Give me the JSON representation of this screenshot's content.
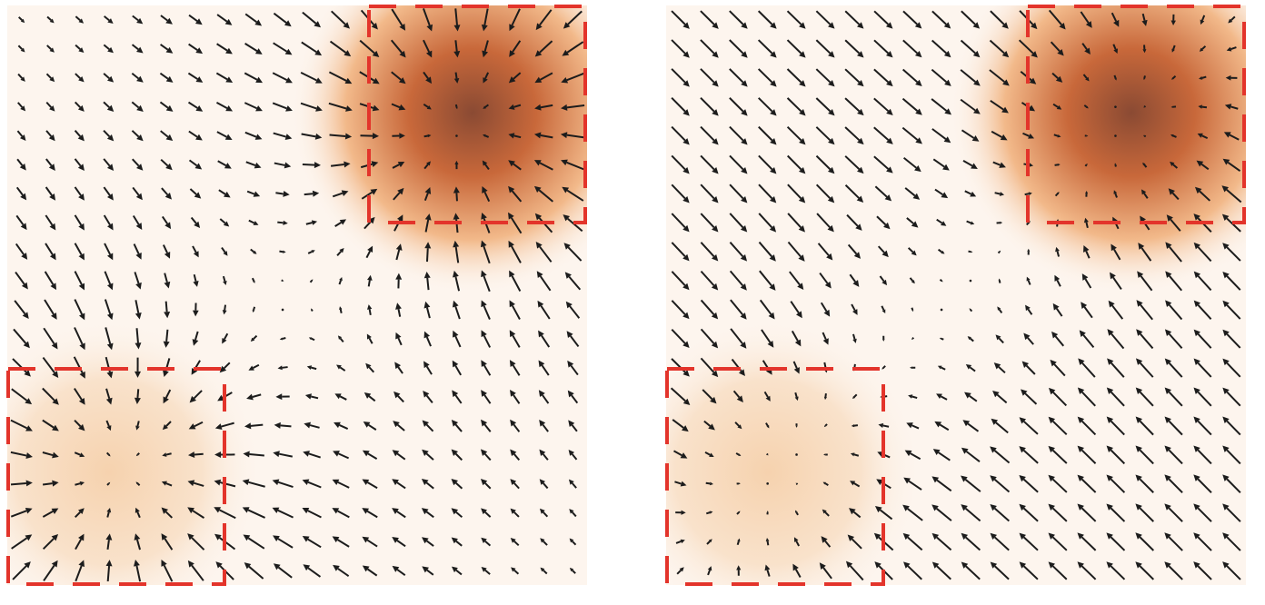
{
  "box_color": "#e3342b",
  "arrow_color": "#1c1c1c"
}
